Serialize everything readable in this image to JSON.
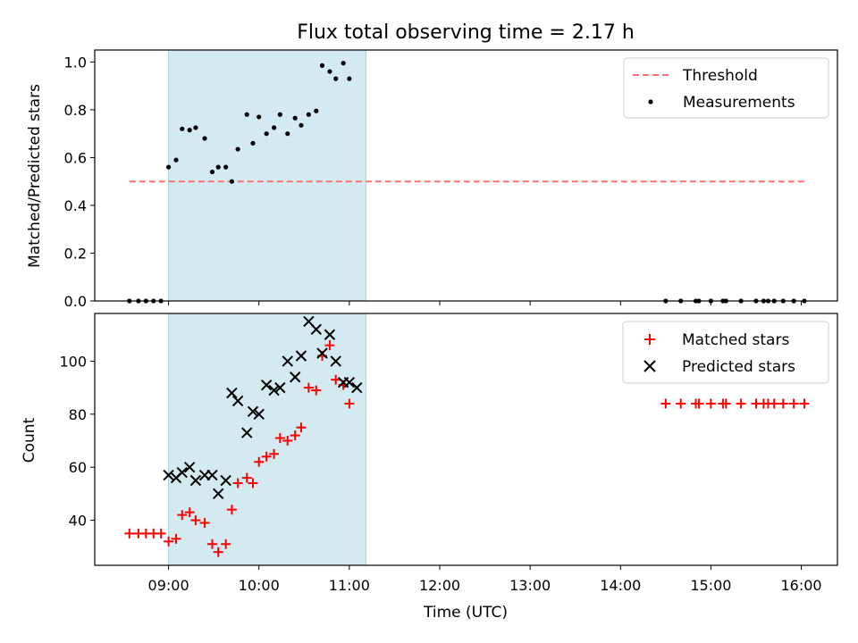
{
  "chart_data": [
    {
      "type": "scatter",
      "title": "Flux total observing time = 2.17 h",
      "xlabel": "",
      "ylabel": "Matched/Predicted stars",
      "ylim": [
        0,
        1.05
      ],
      "yticks": [
        "0.0",
        "0.2",
        "0.4",
        "0.6",
        "0.8",
        "1.0"
      ],
      "legend_position": "top-right",
      "highlight_span": {
        "start": "09:00",
        "end": "11:11",
        "color": "#d2eaf0"
      },
      "threshold": {
        "name": "Threshold",
        "value": 0.5,
        "x_start": "08:34",
        "x_end": "16:02",
        "color": "#ff7070",
        "style": "dashed"
      },
      "series": [
        {
          "name": "Measurements",
          "color": "#000000",
          "marker": "dot",
          "x": [
            "08:34",
            "08:40",
            "08:45",
            "08:50",
            "08:55",
            "09:00",
            "09:05",
            "09:09",
            "09:14",
            "09:18",
            "09:24",
            "09:29",
            "09:33",
            "09:38",
            "09:42",
            "09:46",
            "09:52",
            "09:56",
            "10:00",
            "10:05",
            "10:10",
            "10:14",
            "10:19",
            "10:24",
            "10:28",
            "10:33",
            "10:38",
            "10:42",
            "10:47",
            "10:51",
            "10:56",
            "11:00",
            "11:05",
            "11:10",
            "14:30",
            "14:40",
            "14:50",
            "14:52",
            "15:00",
            "15:08",
            "15:10",
            "15:20",
            "15:30",
            "15:35",
            "15:38",
            "15:42",
            "15:48",
            "15:55",
            "16:02"
          ],
          "y": [
            0,
            0,
            0,
            0,
            0,
            0.56,
            0.59,
            0.72,
            0.715,
            0.725,
            0.68,
            0.54,
            0.56,
            0.56,
            0.5,
            0.635,
            0.78,
            0.66,
            0.77,
            0.7,
            0.725,
            0.78,
            0.7,
            0.765,
            0.735,
            0.78,
            0.795,
            0.985,
            0.96,
            0.93,
            0.995,
            0.93,
            null,
            null,
            0,
            0,
            0,
            0,
            0,
            0,
            0,
            0,
            0,
            0,
            0,
            0,
            0,
            0,
            0
          ]
        }
      ]
    },
    {
      "type": "scatter",
      "title": "",
      "xlabel": "Time (UTC)",
      "ylabel": "Count",
      "ylim": [
        23,
        118
      ],
      "yticks": [
        "40",
        "60",
        "80",
        "100"
      ],
      "xticks": [
        "09:00",
        "10:00",
        "11:00",
        "12:00",
        "13:00",
        "14:00",
        "15:00",
        "16:00"
      ],
      "xlim": [
        "08:11",
        "16:24"
      ],
      "legend_position": "top-right",
      "highlight_span": {
        "start": "09:00",
        "end": "11:11",
        "color": "#d2eaf0"
      },
      "series": [
        {
          "name": "Matched stars",
          "color": "#ff0000",
          "marker": "plus",
          "x": [
            "08:34",
            "08:40",
            "08:45",
            "08:50",
            "08:55",
            "09:00",
            "09:05",
            "09:09",
            "09:14",
            "09:18",
            "09:24",
            "09:29",
            "09:33",
            "09:38",
            "09:42",
            "09:46",
            "09:52",
            "09:56",
            "10:00",
            "10:05",
            "10:10",
            "10:14",
            "10:19",
            "10:24",
            "10:28",
            "10:33",
            "10:38",
            "10:42",
            "10:47",
            "10:51",
            "10:56",
            "11:00",
            "11:05",
            "11:10",
            "14:30",
            "14:40",
            "14:50",
            "14:52",
            "15:00",
            "15:08",
            "15:10",
            "15:20",
            "15:30",
            "15:35",
            "15:38",
            "15:42",
            "15:48",
            "15:55",
            "16:02"
          ],
          "y": [
            35,
            35,
            35,
            35,
            35,
            32,
            33,
            42,
            43,
            40,
            39,
            31,
            28,
            31,
            44,
            54,
            56,
            54,
            62,
            64,
            65,
            71,
            70,
            72,
            75,
            90,
            89,
            102,
            106,
            93,
            91,
            84,
            null,
            null,
            84,
            84,
            84,
            84,
            84,
            84,
            84,
            84,
            84,
            84,
            84,
            84,
            84,
            84,
            84
          ]
        },
        {
          "name": "Predicted stars",
          "color": "#000000",
          "marker": "x",
          "x": [
            "09:00",
            "09:05",
            "09:09",
            "09:14",
            "09:18",
            "09:24",
            "09:29",
            "09:33",
            "09:38",
            "09:42",
            "09:46",
            "09:52",
            "09:56",
            "10:00",
            "10:05",
            "10:10",
            "10:14",
            "10:19",
            "10:24",
            "10:28",
            "10:33",
            "10:38",
            "10:42",
            "10:47",
            "10:51",
            "10:56",
            "11:00",
            "11:05"
          ],
          "y": [
            57,
            56,
            58,
            60,
            55,
            57,
            57,
            50,
            55,
            88,
            85,
            73,
            81,
            80,
            91,
            89,
            90,
            100,
            94,
            102,
            115,
            112,
            103,
            110,
            100,
            92,
            92,
            90
          ]
        }
      ]
    }
  ]
}
